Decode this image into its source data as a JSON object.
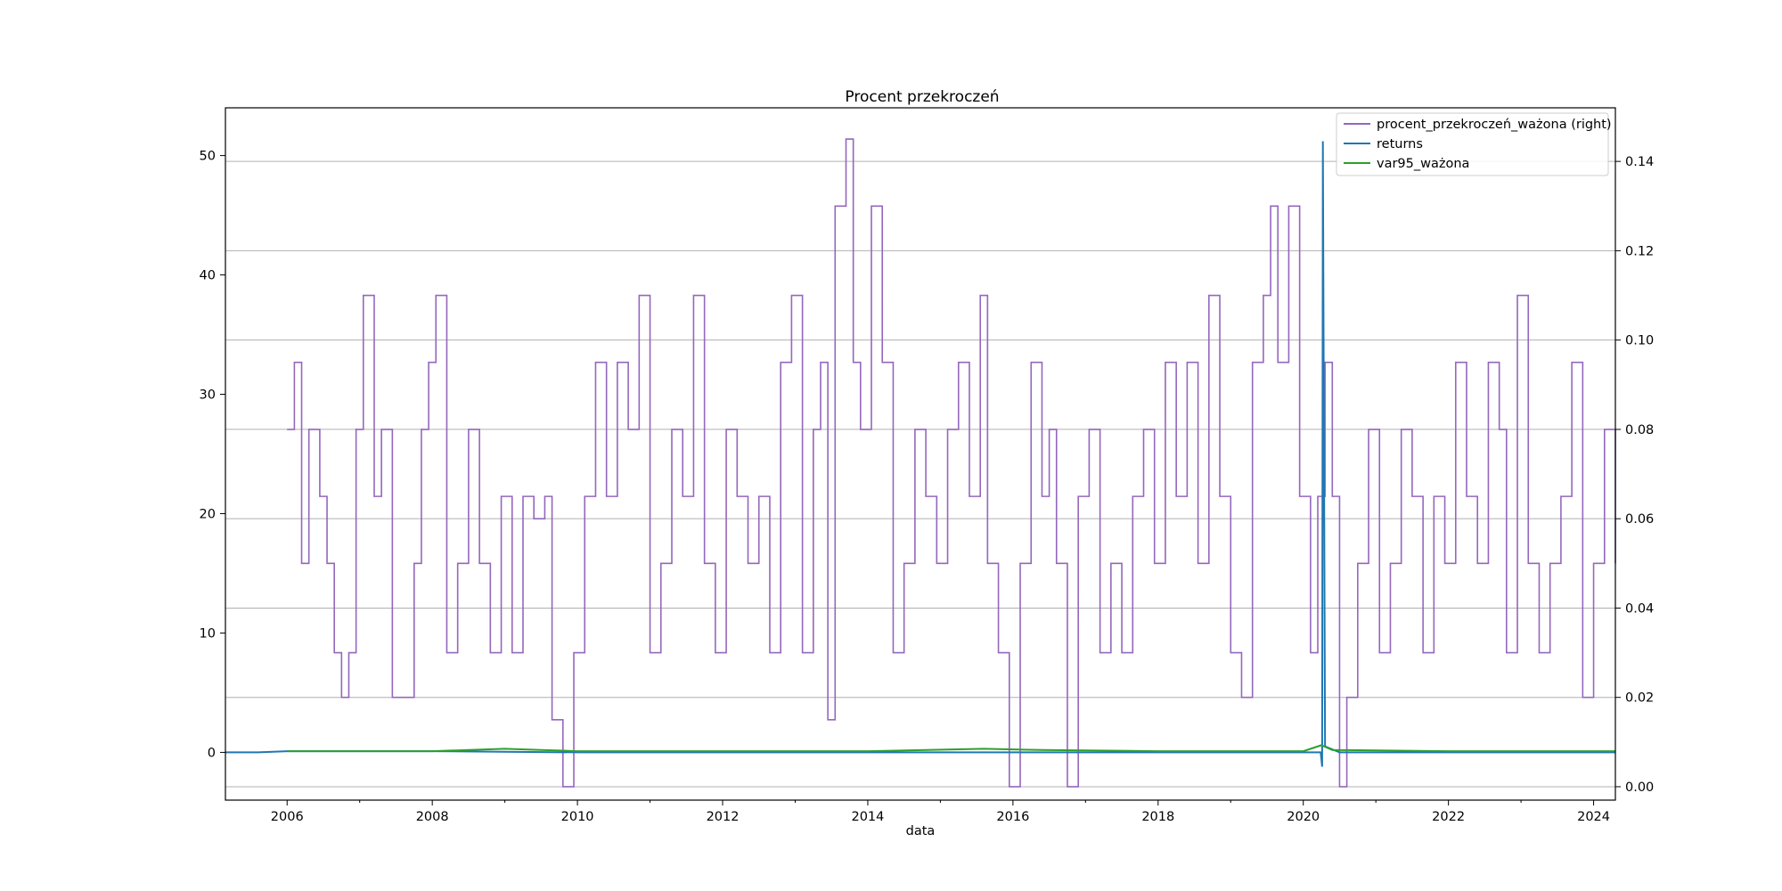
{
  "chart_data": {
    "type": "line",
    "title": "Procent przekroczeń",
    "xlabel": "data",
    "ylabel": "",
    "ylabel_right": "",
    "xlim": [
      2005.15,
      2024.3
    ],
    "ylim": [
      -4,
      54
    ],
    "ylim_right": [
      -0.003,
      0.152
    ],
    "x_ticks": [
      2006,
      2008,
      2010,
      2012,
      2014,
      2016,
      2018,
      2020,
      2022,
      2024
    ],
    "x_tick_labels": [
      "2006",
      "2008",
      "2010",
      "2012",
      "2014",
      "2016",
      "2018",
      "2020",
      "2022",
      "2024"
    ],
    "y_ticks": [
      0,
      10,
      20,
      30,
      40,
      50
    ],
    "y_tick_labels": [
      "0",
      "10",
      "20",
      "30",
      "40",
      "50"
    ],
    "y_right_ticks": [
      0.0,
      0.02,
      0.04,
      0.06,
      0.08,
      0.1,
      0.12,
      0.14
    ],
    "y_right_tick_labels": [
      "0.00",
      "0.02",
      "0.04",
      "0.06",
      "0.08",
      "0.10",
      "0.12",
      "0.14"
    ],
    "grid": "horizontal lines at right-axis ticks",
    "legend_position": "top-right",
    "legend": [
      "procent_przekroczeń_ważona (right)",
      "returns",
      "var95_ważona"
    ],
    "series": [
      {
        "name": "procent_przekroczeń_ważona (right)",
        "axis": "right",
        "color": "#9467bd",
        "step": true,
        "x": [
          2006.0,
          2006.1,
          2006.2,
          2006.3,
          2006.45,
          2006.55,
          2006.65,
          2006.75,
          2006.85,
          2006.95,
          2007.05,
          2007.2,
          2007.3,
          2007.45,
          2007.6,
          2007.75,
          2007.85,
          2007.95,
          2008.05,
          2008.2,
          2008.35,
          2008.5,
          2008.65,
          2008.8,
          2008.95,
          2009.1,
          2009.25,
          2009.4,
          2009.55,
          2009.65,
          2009.8,
          2009.95,
          2010.1,
          2010.25,
          2010.4,
          2010.55,
          2010.7,
          2010.85,
          2011.0,
          2011.15,
          2011.3,
          2011.45,
          2011.6,
          2011.75,
          2011.9,
          2012.05,
          2012.2,
          2012.35,
          2012.5,
          2012.65,
          2012.8,
          2012.95,
          2013.1,
          2013.25,
          2013.35,
          2013.45,
          2013.55,
          2013.7,
          2013.8,
          2013.9,
          2014.05,
          2014.2,
          2014.35,
          2014.5,
          2014.65,
          2014.8,
          2014.95,
          2015.1,
          2015.25,
          2015.4,
          2015.55,
          2015.65,
          2015.8,
          2015.95,
          2016.1,
          2016.25,
          2016.4,
          2016.5,
          2016.6,
          2016.75,
          2016.9,
          2017.05,
          2017.2,
          2017.35,
          2017.5,
          2017.65,
          2017.8,
          2017.95,
          2018.1,
          2018.25,
          2018.4,
          2018.55,
          2018.7,
          2018.85,
          2019.0,
          2019.15,
          2019.3,
          2019.45,
          2019.55,
          2019.65,
          2019.8,
          2019.95,
          2020.1,
          2020.2,
          2020.3,
          2020.4,
          2020.5,
          2020.6,
          2020.75,
          2020.9,
          2021.05,
          2021.2,
          2021.35,
          2021.5,
          2021.65,
          2021.8,
          2021.95,
          2022.1,
          2022.25,
          2022.4,
          2022.55,
          2022.7,
          2022.8,
          2022.95,
          2023.1,
          2023.25,
          2023.4,
          2023.55,
          2023.7,
          2023.85,
          2024.0,
          2024.15,
          2024.3
        ],
        "values": [
          0.08,
          0.095,
          0.05,
          0.08,
          0.065,
          0.05,
          0.03,
          0.02,
          0.03,
          0.08,
          0.11,
          0.065,
          0.08,
          0.02,
          0.02,
          0.05,
          0.08,
          0.095,
          0.11,
          0.03,
          0.05,
          0.08,
          0.05,
          0.03,
          0.065,
          0.03,
          0.065,
          0.06,
          0.065,
          0.015,
          0.0,
          0.03,
          0.065,
          0.095,
          0.065,
          0.095,
          0.08,
          0.11,
          0.03,
          0.05,
          0.08,
          0.065,
          0.11,
          0.05,
          0.03,
          0.08,
          0.065,
          0.05,
          0.065,
          0.03,
          0.095,
          0.11,
          0.03,
          0.08,
          0.095,
          0.015,
          0.13,
          0.145,
          0.095,
          0.08,
          0.13,
          0.095,
          0.03,
          0.05,
          0.08,
          0.065,
          0.05,
          0.08,
          0.095,
          0.065,
          0.11,
          0.05,
          0.03,
          0.0,
          0.05,
          0.095,
          0.065,
          0.08,
          0.05,
          0.0,
          0.065,
          0.08,
          0.03,
          0.05,
          0.03,
          0.065,
          0.08,
          0.05,
          0.095,
          0.065,
          0.095,
          0.05,
          0.11,
          0.065,
          0.03,
          0.02,
          0.095,
          0.11,
          0.13,
          0.095,
          0.13,
          0.065,
          0.03,
          0.065,
          0.095,
          0.065,
          0.0,
          0.02,
          0.05,
          0.08,
          0.03,
          0.05,
          0.08,
          0.065,
          0.03,
          0.065,
          0.05,
          0.095,
          0.065,
          0.05,
          0.095,
          0.08,
          0.03,
          0.11,
          0.05,
          0.03,
          0.05,
          0.065,
          0.095,
          0.02,
          0.05,
          0.08,
          0.05
        ]
      },
      {
        "name": "returns",
        "axis": "left",
        "color": "#1f77b4",
        "x": [
          2005.15,
          2005.6,
          2006.0,
          2008.0,
          2010.0,
          2012.0,
          2014.0,
          2016.0,
          2018.0,
          2020.0,
          2020.24,
          2020.26,
          2020.27,
          2020.3,
          2020.5,
          2022.0,
          2024.3
        ],
        "values": [
          0.0,
          0.0,
          0.1,
          0.1,
          0.0,
          0.0,
          0.0,
          0.0,
          0.0,
          0.0,
          0.0,
          -1.2,
          51.2,
          0.5,
          0.0,
          0.0,
          0.0
        ]
      },
      {
        "name": "var95_ważona",
        "axis": "left",
        "color": "#2ca02c",
        "x": [
          2006.0,
          2008.0,
          2009.0,
          2009.5,
          2010.0,
          2012.0,
          2014.0,
          2015.6,
          2016.4,
          2018.0,
          2020.0,
          2020.25,
          2020.4,
          2022.0,
          2024.3
        ],
        "values": [
          0.1,
          0.1,
          0.3,
          0.2,
          0.1,
          0.1,
          0.1,
          0.3,
          0.2,
          0.1,
          0.1,
          0.6,
          0.2,
          0.1,
          0.1
        ]
      }
    ]
  }
}
